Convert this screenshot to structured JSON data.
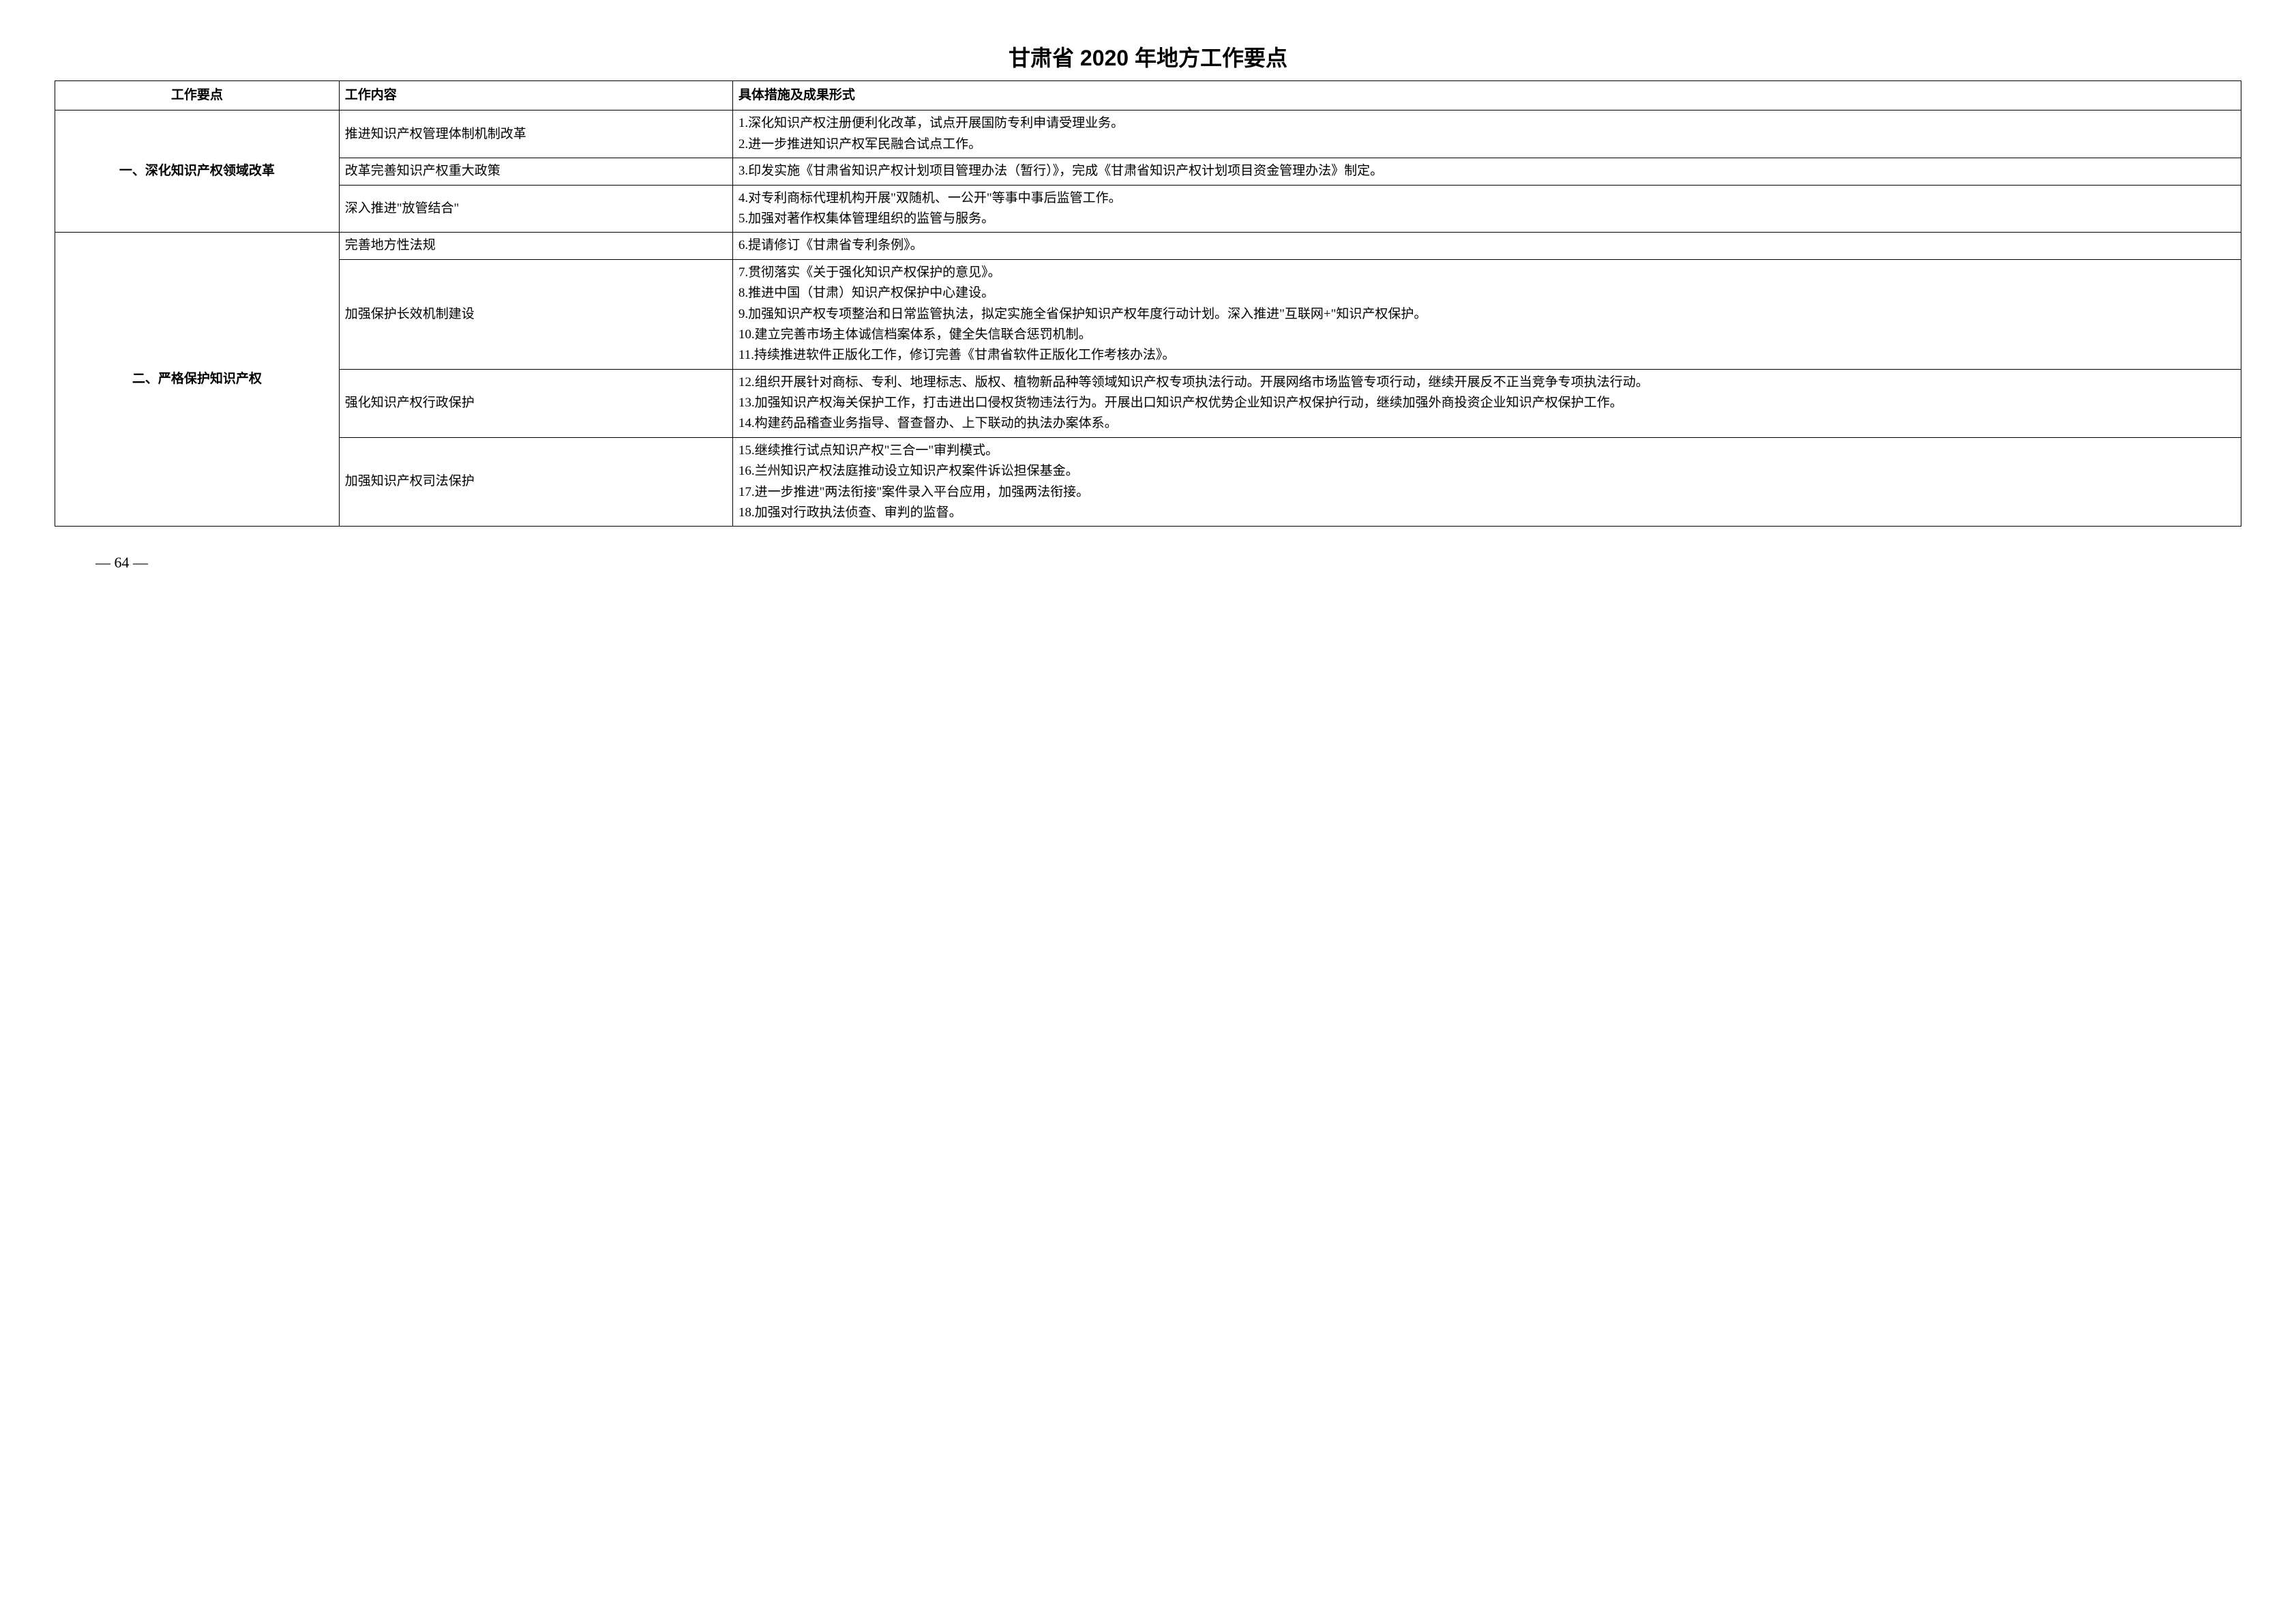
{
  "title": "甘肃省 2020 年地方工作要点",
  "headers": {
    "col1": "工作要点",
    "col2": "工作内容",
    "col3": "具体措施及成果形式"
  },
  "sections": [
    {
      "keypoint": "一、深化知识产权领域改革",
      "rows": [
        {
          "content": "推进知识产权管理体制机制改革",
          "measures": [
            "1.深化知识产权注册便利化改革，试点开展国防专利申请受理业务。",
            "2.进一步推进知识产权军民融合试点工作。"
          ]
        },
        {
          "content": "改革完善知识产权重大政策",
          "measures": [
            "3.印发实施《甘肃省知识产权计划项目管理办法（暂行）》，完成《甘肃省知识产权计划项目资金管理办法》制定。"
          ]
        },
        {
          "content": "深入推进\"放管结合\"",
          "measures": [
            "4.对专利商标代理机构开展\"双随机、一公开\"等事中事后监管工作。",
            "5.加强对著作权集体管理组织的监管与服务。"
          ]
        }
      ]
    },
    {
      "keypoint": "二、严格保护知识产权",
      "rows": [
        {
          "content": "完善地方性法规",
          "measures": [
            "6.提请修订《甘肃省专利条例》。"
          ]
        },
        {
          "content": "加强保护长效机制建设",
          "measures": [
            "7.贯彻落实《关于强化知识产权保护的意见》。",
            "8.推进中国（甘肃）知识产权保护中心建设。",
            "9.加强知识产权专项整治和日常监管执法，拟定实施全省保护知识产权年度行动计划。深入推进\"互联网+\"知识产权保护。",
            "10.建立完善市场主体诚信档案体系，健全失信联合惩罚机制。",
            "11.持续推进软件正版化工作，修订完善《甘肃省软件正版化工作考核办法》。"
          ]
        },
        {
          "content": "强化知识产权行政保护",
          "measures": [
            "12.组织开展针对商标、专利、地理标志、版权、植物新品种等领域知识产权专项执法行动。开展网络市场监管专项行动，继续开展反不正当竞争专项执法行动。",
            "13.加强知识产权海关保护工作，打击进出口侵权货物违法行为。开展出口知识产权优势企业知识产权保护行动，继续加强外商投资企业知识产权保护工作。",
            "14.构建药品稽查业务指导、督查督办、上下联动的执法办案体系。"
          ]
        },
        {
          "content": "加强知识产权司法保护",
          "measures": [
            "15.继续推行试点知识产权\"三合一\"审判模式。",
            "16.兰州知识产权法庭推动设立知识产权案件诉讼担保基金。",
            "17.进一步推进\"两法衔接\"案件录入平台应用，加强两法衔接。",
            "18.加强对行政执法侦查、审判的监督。"
          ]
        }
      ]
    }
  ],
  "pageNumber": "— 64 —"
}
